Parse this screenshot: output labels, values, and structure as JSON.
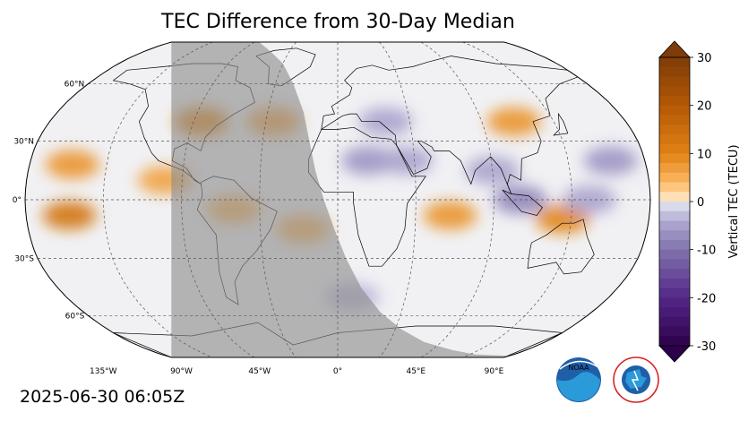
{
  "title": "TEC Difference from 30-Day Median",
  "timestamp": "2025-06-30 06:05Z",
  "chart_data": {
    "type": "heatmap",
    "title": "TEC Difference from 30-Day Median",
    "projection": "Robinson",
    "colorbar": {
      "label": "Vertical TEC (TECU)",
      "min": -30,
      "max": 30,
      "ticks": [
        30,
        20,
        10,
        0,
        -10,
        -20,
        -30
      ],
      "tick_labels": [
        "30",
        "20",
        "10",
        "0",
        "-10",
        "-20",
        "-30"
      ],
      "colormap": "PuOr_r",
      "extend": "both"
    },
    "lat_ticks": [
      60,
      30,
      0,
      -30,
      -60
    ],
    "lat_labels": [
      "60°N",
      "30°N",
      "0°",
      "30°S",
      "60°S"
    ],
    "lon_ticks": [
      -135,
      -90,
      -45,
      0,
      45,
      90,
      135
    ],
    "lon_labels": [
      "135°W",
      "90°W",
      "45°W",
      "0°",
      "45°E",
      "90°E",
      "135°E"
    ],
    "grid": true,
    "night_shading": "western hemisphere (Americas, Pacific, Atlantic)",
    "anomalies": [
      {
        "lon": -155,
        "lat": -8,
        "value": 8
      },
      {
        "lon": -155,
        "lat": 18,
        "value": 5
      },
      {
        "lon": -85,
        "lat": 40,
        "value": 6
      },
      {
        "lon": -40,
        "lat": 40,
        "value": 4
      },
      {
        "lon": -100,
        "lat": 10,
        "value": 4
      },
      {
        "lon": -60,
        "lat": -5,
        "value": 3
      },
      {
        "lon": -20,
        "lat": -15,
        "value": 3
      },
      {
        "lon": 18,
        "lat": 20,
        "value": -4
      },
      {
        "lon": 40,
        "lat": 20,
        "value": -3
      },
      {
        "lon": 30,
        "lat": 40,
        "value": -3
      },
      {
        "lon": 65,
        "lat": -8,
        "value": 5
      },
      {
        "lon": 110,
        "lat": 40,
        "value": 5
      },
      {
        "lon": 105,
        "lat": 0,
        "value": -5
      },
      {
        "lon": 90,
        "lat": 15,
        "value": -3
      },
      {
        "lon": 130,
        "lat": -10,
        "value": 6
      },
      {
        "lon": 160,
        "lat": 20,
        "value": -4
      },
      {
        "lon": 145,
        "lat": 0,
        "value": -3
      },
      {
        "lon": 10,
        "lat": -50,
        "value": -2
      }
    ]
  },
  "logos": {
    "noaa_text": "NOAA",
    "nws_text": "NATIONAL WEATHER SERVICE"
  },
  "colors": {
    "night_shade": "#8c8c8c",
    "grid": "#555555",
    "coast": "#000000"
  }
}
